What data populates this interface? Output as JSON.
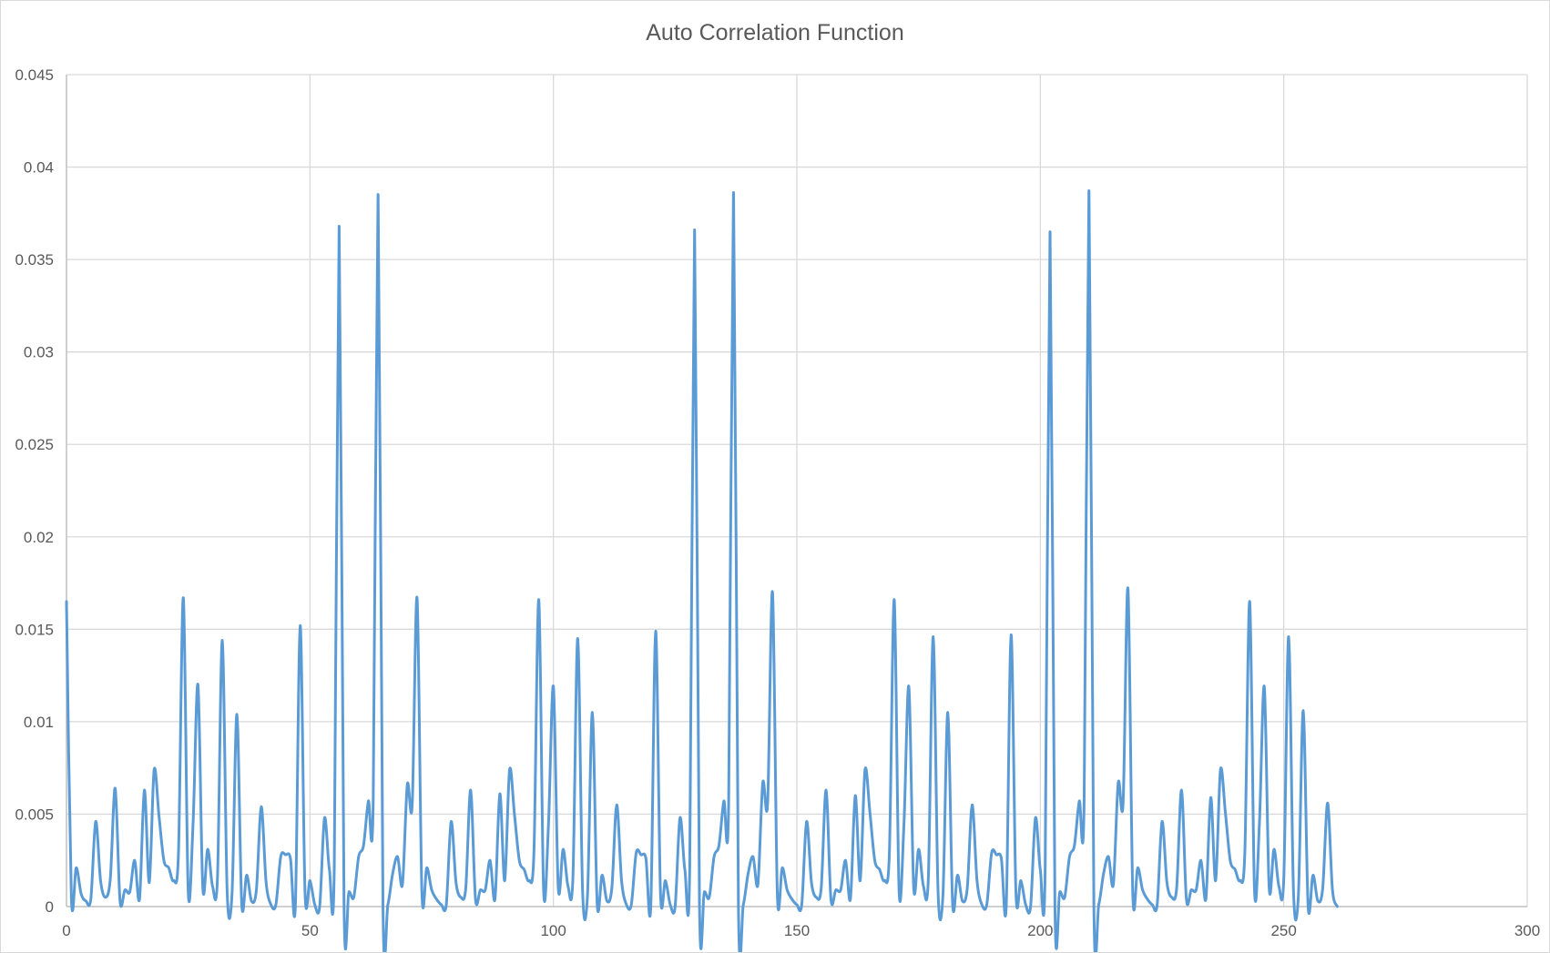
{
  "chart_data": {
    "type": "line",
    "title": "Auto Correlation Function",
    "xlabel": "",
    "ylabel": "",
    "xlim": [
      0,
      300
    ],
    "ylim": [
      0,
      0.045
    ],
    "x_ticks": [
      0,
      50,
      100,
      150,
      200,
      250,
      300
    ],
    "y_ticks": [
      0,
      0.005,
      0.01,
      0.015,
      0.02,
      0.025,
      0.03,
      0.035,
      0.04,
      0.045
    ],
    "x_tick_labels": [
      "0",
      "50",
      "100",
      "150",
      "200",
      "250",
      "300"
    ],
    "y_tick_labels": [
      "0",
      "0.005",
      "0.01",
      "0.015",
      "0.02",
      "0.025",
      "0.03",
      "0.035",
      "0.04",
      "0.045"
    ],
    "grid": true,
    "legend": "none",
    "series_color": "#5b9bd5",
    "grid_color": "#d9d9d9",
    "series": [
      {
        "values": [
          0.0165,
          0.0005,
          0.0021,
          0.0007,
          0.0003,
          0.0004,
          0.0046,
          0.0014,
          0.0005,
          0.0015,
          0.0064,
          0.0003,
          0.0009,
          0.0008,
          0.0025,
          0.0004,
          0.0063,
          0.0013,
          0.0074,
          0.0049,
          0.0025,
          0.0021,
          0.0014,
          0.0029,
          0.0167,
          0.0008,
          0.0045,
          0.012,
          0.001,
          0.0031,
          0.0011,
          0.0015,
          0.0144,
          0.0008,
          0.0007,
          0.0104,
          0.0001,
          0.0017,
          0.0003,
          0.0009,
          0.0054,
          0.0013,
          0.0001,
          0.0001,
          0.0027,
          0.0028,
          0.0026,
          0.0,
          0.0152,
          0.0007,
          0.0014,
          0.0001,
          0.0,
          0.0048,
          0.002,
          0.0022,
          0.0368,
          0.0001,
          0.0008,
          0.0005,
          0.0027,
          0.0033,
          0.0057,
          0.0058,
          0.0385,
          0.0,
          0.0001,
          0.0018,
          0.0027,
          0.0012,
          0.0066,
          0.0055,
          0.0167,
          0.0007,
          0.0021,
          0.0009,
          0.0004,
          0.0001,
          0.0001,
          0.0046,
          0.0013,
          0.0005,
          0.001,
          0.0063,
          0.0004,
          0.0009,
          0.0009,
          0.0025,
          0.0004,
          0.0061,
          0.0014,
          0.0074,
          0.005,
          0.0025,
          0.002,
          0.0014,
          0.0029,
          0.0166,
          0.0008,
          0.0045,
          0.0119,
          0.001,
          0.0031,
          0.0011,
          0.0015,
          0.0145,
          0.0008,
          0.0006,
          0.0105,
          0.0001,
          0.0017,
          0.0003,
          0.001,
          0.0055,
          0.0014,
          0.0001,
          0.0001,
          0.0029,
          0.0028,
          0.0026,
          0.0,
          0.0149,
          0.0007,
          0.0014,
          0.0001,
          0.0,
          0.0048,
          0.002,
          0.0021,
          0.0366,
          0.0001,
          0.0008,
          0.0005,
          0.0027,
          0.0033,
          0.0057,
          0.0057,
          0.0386,
          0.0,
          0.0001,
          0.0018,
          0.0027,
          0.0012,
          0.0067,
          0.0056,
          0.017,
          0.0006,
          0.0021,
          0.0009,
          0.0004,
          0.0001,
          0.0001,
          0.0046,
          0.0013,
          0.0005,
          0.001,
          0.0063,
          0.0004,
          0.0009,
          0.0009,
          0.0025,
          0.0004,
          0.006,
          0.0014,
          0.0074,
          0.0051,
          0.0025,
          0.002,
          0.0014,
          0.0029,
          0.0166,
          0.0008,
          0.0045,
          0.0119,
          0.001,
          0.0031,
          0.0011,
          0.0015,
          0.0146,
          0.0008,
          0.0006,
          0.0105,
          0.0001,
          0.0017,
          0.0003,
          0.001,
          0.0055,
          0.0014,
          0.0001,
          0.0001,
          0.0029,
          0.0028,
          0.0026,
          0.0,
          0.0147,
          0.0007,
          0.0014,
          0.0001,
          0.0,
          0.0048,
          0.002,
          0.0021,
          0.0365,
          0.0001,
          0.0008,
          0.0005,
          0.0027,
          0.0033,
          0.0057,
          0.0057,
          0.0387,
          0.0,
          0.0001,
          0.0018,
          0.0027,
          0.0012,
          0.0067,
          0.0056,
          0.0172,
          0.0006,
          0.0021,
          0.0009,
          0.0004,
          0.0001,
          0.0001,
          0.0046,
          0.0013,
          0.0005,
          0.001,
          0.0063,
          0.0004,
          0.0009,
          0.0009,
          0.0025,
          0.0004,
          0.0059,
          0.0014,
          0.0074,
          0.0051,
          0.0025,
          0.002,
          0.0014,
          0.0029,
          0.0165,
          0.0008,
          0.0045,
          0.0119,
          0.001,
          0.0031,
          0.0011,
          0.0015,
          0.0146,
          0.0008,
          0.0006,
          0.0106,
          0.0,
          0.0017,
          0.0003,
          0.001,
          0.0056,
          0.0009,
          0.0
        ]
      }
    ]
  }
}
